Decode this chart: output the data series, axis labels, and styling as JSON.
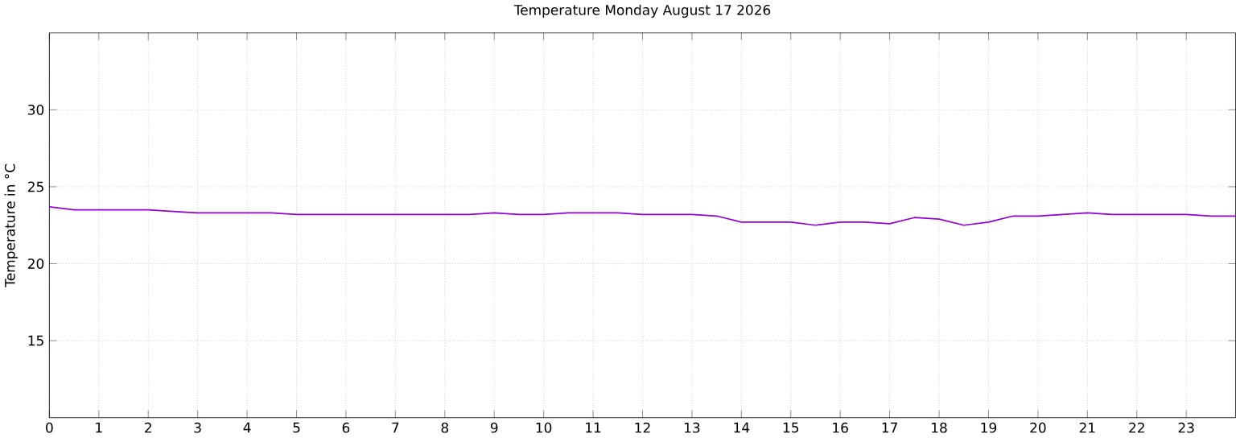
{
  "chart_data": {
    "type": "line",
    "title": "Temperature Monday August 17 2026",
    "ylabel": "Temperature in °C",
    "x": [
      0,
      0.5,
      1,
      1.5,
      2,
      2.5,
      3,
      3.5,
      4,
      4.5,
      5,
      5.5,
      6,
      6.5,
      7,
      7.5,
      8,
      8.5,
      9,
      9.5,
      10,
      10.5,
      11,
      11.5,
      12,
      12.5,
      13,
      13.5,
      14,
      14.5,
      15,
      15.5,
      16,
      16.5,
      17,
      17.5,
      18,
      18.5,
      19,
      19.5,
      20,
      20.5,
      21,
      21.5,
      22,
      22.5,
      23,
      23.5,
      24
    ],
    "series": [
      {
        "color": "#9400d3",
        "values": [
          23.7,
          23.5,
          23.5,
          23.5,
          23.5,
          23.4,
          23.3,
          23.3,
          23.3,
          23.3,
          23.2,
          23.2,
          23.2,
          23.2,
          23.2,
          23.2,
          23.2,
          23.2,
          23.3,
          23.2,
          23.2,
          23.3,
          23.3,
          23.3,
          23.2,
          23.2,
          23.2,
          23.1,
          22.7,
          22.7,
          22.7,
          22.5,
          22.7,
          22.7,
          22.6,
          23.0,
          22.9,
          22.5,
          22.7,
          23.1,
          23.1,
          23.2,
          23.3,
          23.2,
          23.2,
          23.2,
          23.2,
          23.1,
          23.1
        ]
      }
    ],
    "xlim": [
      0,
      24
    ],
    "ylim": [
      10,
      35
    ],
    "xticks": [
      0,
      1,
      2,
      3,
      4,
      5,
      6,
      7,
      8,
      9,
      10,
      11,
      12,
      13,
      14,
      15,
      16,
      17,
      18,
      19,
      20,
      21,
      22,
      23
    ],
    "yticks": [
      15,
      20,
      25,
      30
    ],
    "grid": true
  }
}
